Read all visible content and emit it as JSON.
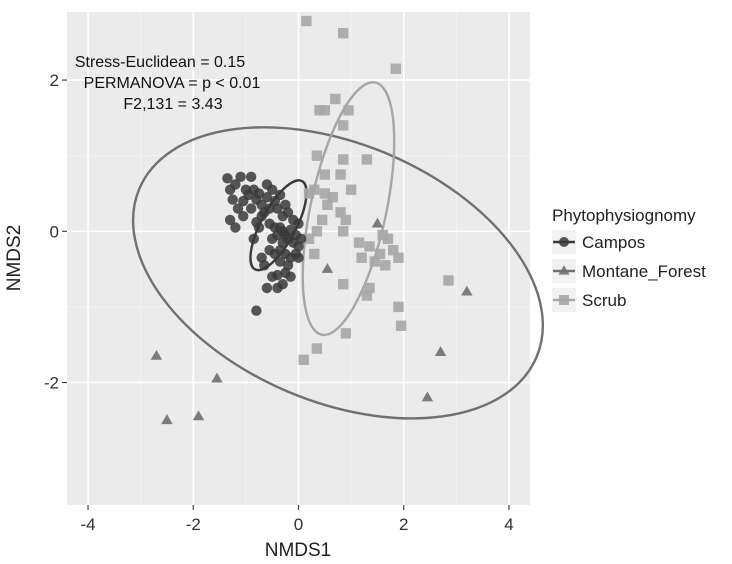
{
  "chart_data": {
    "type": "scatter",
    "xlabel": "NMDS1",
    "ylabel": "NMDS2",
    "xlim": [
      -4.4,
      4.4
    ],
    "ylim": [
      -3.62,
      2.9
    ],
    "x_ticks": [
      -4,
      -2,
      0,
      2,
      4
    ],
    "y_ticks": [
      -2,
      0,
      2
    ],
    "x_tick_labels": [
      "-4",
      "-2",
      "0",
      "2",
      "4"
    ],
    "y_tick_labels": [
      "-2",
      "0",
      "2"
    ],
    "grid": true,
    "legend_position": "right",
    "legend_title": "Phytophysiognomy",
    "annotations": [
      "Stress-Euclidean = 0.15",
      "PERMANOVA = p < 0.01",
      "F2,131 = 3.43"
    ],
    "series": [
      {
        "name": "Campos",
        "marker": "circle",
        "color": "#3a3a3a",
        "ellipse": {
          "cx": -0.38,
          "cy": 0.08,
          "rx": 0.95,
          "ry": 0.33,
          "angle_deg": -62
        },
        "points": [
          [
            -1.3,
            0.55
          ],
          [
            -1.2,
            0.62
          ],
          [
            -1.1,
            0.72
          ],
          [
            -1.25,
            0.42
          ],
          [
            -1.15,
            0.3
          ],
          [
            -1.05,
            0.4
          ],
          [
            -1.3,
            0.15
          ],
          [
            -1.35,
            0.7
          ],
          [
            -1.0,
            0.55
          ],
          [
            -0.9,
            0.72
          ],
          [
            -0.85,
            0.55
          ],
          [
            -0.8,
            0.42
          ],
          [
            -0.75,
            0.5
          ],
          [
            -0.7,
            0.35
          ],
          [
            -0.65,
            0.25
          ],
          [
            -0.6,
            0.45
          ],
          [
            -0.55,
            0.3
          ],
          [
            -0.5,
            0.55
          ],
          [
            -0.45,
            0.4
          ],
          [
            -0.4,
            0.3
          ],
          [
            -0.35,
            0.48
          ],
          [
            -0.3,
            0.2
          ],
          [
            -0.25,
            0.35
          ],
          [
            -0.2,
            0.25
          ],
          [
            -0.6,
            0.62
          ],
          [
            -0.7,
            0.2
          ],
          [
            -0.9,
            0.3
          ],
          [
            -1.2,
            0.05
          ],
          [
            -0.8,
            0.12
          ],
          [
            -0.55,
            0.1
          ],
          [
            -0.45,
            0.05
          ],
          [
            -0.35,
            0.05
          ],
          [
            -0.3,
            0.0
          ],
          [
            -0.25,
            -0.05
          ],
          [
            -0.2,
            -0.1
          ],
          [
            -0.15,
            0.02
          ],
          [
            -0.1,
            -0.15
          ],
          [
            -0.05,
            -0.05
          ],
          [
            0.0,
            -0.2
          ],
          [
            -0.3,
            -0.15
          ],
          [
            -0.4,
            -0.05
          ],
          [
            -0.5,
            -0.1
          ],
          [
            -0.35,
            -0.25
          ],
          [
            -0.25,
            -0.3
          ],
          [
            -0.15,
            -0.35
          ],
          [
            -0.05,
            -0.3
          ],
          [
            0.0,
            -0.35
          ],
          [
            -0.2,
            -0.45
          ],
          [
            -0.35,
            -0.4
          ],
          [
            -0.45,
            -0.3
          ],
          [
            -0.55,
            -0.25
          ],
          [
            -0.1,
            0.15
          ],
          [
            0.05,
            -0.1
          ],
          [
            0.0,
            0.1
          ],
          [
            -0.65,
            -0.45
          ],
          [
            -0.5,
            -0.6
          ],
          [
            -0.4,
            -0.75
          ],
          [
            -0.25,
            -0.55
          ],
          [
            -0.6,
            -0.75
          ],
          [
            -0.4,
            -0.58
          ],
          [
            -0.7,
            -0.35
          ],
          [
            -0.3,
            -0.7
          ],
          [
            -0.15,
            -0.6
          ],
          [
            -0.8,
            -1.05
          ],
          [
            -0.95,
            0.48
          ],
          [
            -1.05,
            0.2
          ],
          [
            -0.75,
            0.05
          ],
          [
            -0.85,
            -0.1
          ]
        ]
      },
      {
        "name": "Montane_Forest",
        "marker": "triangle",
        "color": "#707070",
        "ellipse": {
          "cx": 0.75,
          "cy": -0.55,
          "rx": 4.1,
          "ry": 2.45,
          "angle_deg": 23
        },
        "points": [
          [
            -2.7,
            -1.65
          ],
          [
            -2.5,
            -2.5
          ],
          [
            -1.9,
            -2.45
          ],
          [
            -1.55,
            -1.95
          ],
          [
            1.5,
            0.1
          ],
          [
            2.45,
            -2.2
          ],
          [
            2.7,
            -1.6
          ],
          [
            3.2,
            -0.8
          ],
          [
            0.55,
            -0.5
          ]
        ]
      },
      {
        "name": "Scrub",
        "marker": "square",
        "color": "#a6a6a6",
        "ellipse": {
          "cx": 0.95,
          "cy": 0.3,
          "rx": 2.45,
          "ry": 0.72,
          "angle_deg": -78
        },
        "points": [
          [
            0.15,
            2.78
          ],
          [
            0.85,
            2.62
          ],
          [
            1.85,
            2.15
          ],
          [
            0.7,
            1.75
          ],
          [
            0.5,
            1.6
          ],
          [
            0.95,
            1.6
          ],
          [
            0.4,
            1.6
          ],
          [
            0.85,
            1.4
          ],
          [
            0.35,
            1.0
          ],
          [
            0.85,
            0.95
          ],
          [
            0.8,
            0.75
          ],
          [
            1.3,
            0.95
          ],
          [
            0.5,
            0.75
          ],
          [
            0.3,
            0.55
          ],
          [
            0.2,
            0.5
          ],
          [
            0.5,
            0.5
          ],
          [
            0.55,
            0.35
          ],
          [
            0.65,
            0.45
          ],
          [
            0.8,
            0.25
          ],
          [
            0.9,
            0.15
          ],
          [
            0.45,
            0.15
          ],
          [
            0.35,
            0.0
          ],
          [
            0.2,
            -0.1
          ],
          [
            0.3,
            -0.3
          ],
          [
            0.85,
            0.0
          ],
          [
            1.15,
            -0.15
          ],
          [
            1.35,
            -0.2
          ],
          [
            1.6,
            -0.05
          ],
          [
            1.7,
            -0.1
          ],
          [
            1.8,
            -0.25
          ],
          [
            1.2,
            -0.35
          ],
          [
            1.45,
            -0.4
          ],
          [
            1.65,
            -0.45
          ],
          [
            1.9,
            -0.35
          ],
          [
            0.85,
            -0.7
          ],
          [
            1.35,
            -0.75
          ],
          [
            1.3,
            -0.85
          ],
          [
            1.9,
            -1.0
          ],
          [
            1.95,
            -1.25
          ],
          [
            0.9,
            -1.35
          ],
          [
            0.35,
            -1.55
          ],
          [
            0.1,
            -1.7
          ],
          [
            2.85,
            -0.65
          ],
          [
            1.55,
            -0.3
          ],
          [
            1.0,
            0.55
          ]
        ]
      }
    ]
  }
}
